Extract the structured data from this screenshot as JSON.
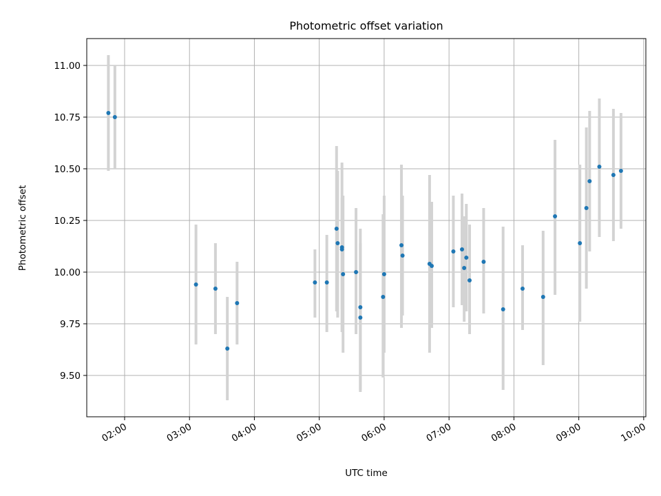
{
  "chart_data": {
    "type": "scatter",
    "title": "Photometric offset variation",
    "xlabel": "UTC time",
    "ylabel": "Photometric offset",
    "xlim": [
      "01:25",
      "10:02"
    ],
    "ylim": [
      9.3,
      11.13
    ],
    "grid": true,
    "x_ticks": [
      "02:00",
      "03:00",
      "04:00",
      "05:00",
      "06:00",
      "07:00",
      "08:00",
      "09:00",
      "10:00"
    ],
    "y_ticks": [
      "9.50",
      "9.75",
      "10.00",
      "10.25",
      "10.50",
      "10.75",
      "11.00"
    ],
    "colors": {
      "point": "#1f77b4",
      "errorbar": "#d3d3d3",
      "grid": "#b0b0b0"
    },
    "series": [
      {
        "points": [
          {
            "x": "01:45",
            "y": 10.77,
            "err_low": 10.49,
            "err_high": 11.05
          },
          {
            "x": "01:51",
            "y": 10.75,
            "err_low": 10.5,
            "err_high": 11.0
          },
          {
            "x": "03:06",
            "y": 9.94,
            "err_low": 9.65,
            "err_high": 10.23
          },
          {
            "x": "03:24",
            "y": 9.92,
            "err_low": 9.7,
            "err_high": 10.14
          },
          {
            "x": "03:35",
            "y": 9.63,
            "err_low": 9.38,
            "err_high": 9.88
          },
          {
            "x": "03:44",
            "y": 9.85,
            "err_low": 9.65,
            "err_high": 10.05
          },
          {
            "x": "04:56",
            "y": 9.95,
            "err_low": 9.78,
            "err_high": 10.11
          },
          {
            "x": "05:07",
            "y": 9.95,
            "err_low": 9.71,
            "err_high": 10.18
          },
          {
            "x": "05:16",
            "y": 10.21,
            "err_low": 9.81,
            "err_high": 10.61
          },
          {
            "x": "05:17",
            "y": 10.14,
            "err_low": 9.78,
            "err_high": 10.49
          },
          {
            "x": "05:21",
            "y": 10.12,
            "err_low": 9.71,
            "err_high": 10.53
          },
          {
            "x": "05:21",
            "y": 10.11,
            "err_low": 9.82,
            "err_high": 10.36
          },
          {
            "x": "05:22",
            "y": 9.99,
            "err_low": 9.61,
            "err_high": 10.37
          },
          {
            "x": "05:34",
            "y": 10.0,
            "err_low": 9.7,
            "err_high": 10.31
          },
          {
            "x": "05:38",
            "y": 9.83,
            "err_low": 9.42,
            "err_high": 10.21
          },
          {
            "x": "05:38",
            "y": 9.78,
            "err_low": 9.43,
            "err_high": 10.14
          },
          {
            "x": "05:59",
            "y": 9.88,
            "err_low": 9.49,
            "err_high": 10.28
          },
          {
            "x": "06:00",
            "y": 9.99,
            "err_low": 9.61,
            "err_high": 10.37
          },
          {
            "x": "06:16",
            "y": 10.13,
            "err_low": 9.73,
            "err_high": 10.52
          },
          {
            "x": "06:17",
            "y": 10.08,
            "err_low": 9.79,
            "err_high": 10.37
          },
          {
            "x": "06:42",
            "y": 10.04,
            "err_low": 9.61,
            "err_high": 10.47
          },
          {
            "x": "06:44",
            "y": 10.03,
            "err_low": 9.73,
            "err_high": 10.34
          },
          {
            "x": "07:04",
            "y": 10.1,
            "err_low": 9.83,
            "err_high": 10.37
          },
          {
            "x": "07:12",
            "y": 10.11,
            "err_low": 9.84,
            "err_high": 10.38
          },
          {
            "x": "07:14",
            "y": 10.02,
            "err_low": 9.76,
            "err_high": 10.27
          },
          {
            "x": "07:16",
            "y": 10.07,
            "err_low": 9.81,
            "err_high": 10.33
          },
          {
            "x": "07:19",
            "y": 9.96,
            "err_low": 9.7,
            "err_high": 10.23
          },
          {
            "x": "07:32",
            "y": 10.05,
            "err_low": 9.8,
            "err_high": 10.31
          },
          {
            "x": "07:50",
            "y": 9.82,
            "err_low": 9.43,
            "err_high": 10.22
          },
          {
            "x": "08:08",
            "y": 9.92,
            "err_low": 9.72,
            "err_high": 10.13
          },
          {
            "x": "08:27",
            "y": 9.88,
            "err_low": 9.55,
            "err_high": 10.2
          },
          {
            "x": "08:38",
            "y": 10.27,
            "err_low": 9.89,
            "err_high": 10.64
          },
          {
            "x": "09:01",
            "y": 10.14,
            "err_low": 9.76,
            "err_high": 10.52
          },
          {
            "x": "09:07",
            "y": 10.31,
            "err_low": 9.92,
            "err_high": 10.7
          },
          {
            "x": "09:10",
            "y": 10.44,
            "err_low": 10.1,
            "err_high": 10.78
          },
          {
            "x": "09:19",
            "y": 10.51,
            "err_low": 10.17,
            "err_high": 10.84
          },
          {
            "x": "09:32",
            "y": 10.47,
            "err_low": 10.15,
            "err_high": 10.79
          },
          {
            "x": "09:39",
            "y": 10.49,
            "err_low": 10.21,
            "err_high": 10.77
          }
        ]
      }
    ]
  }
}
